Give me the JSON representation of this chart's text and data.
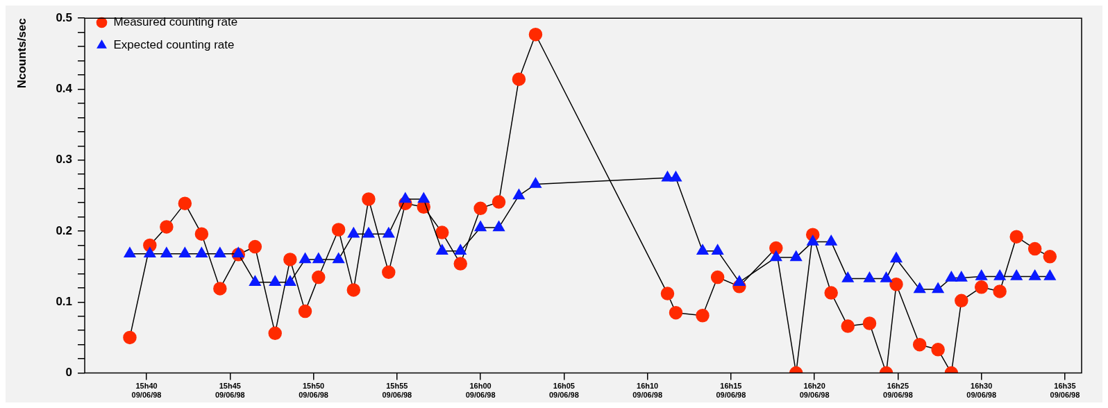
{
  "chart_data": {
    "type": "line",
    "ylabel": "Ncounts/sec",
    "legend": "top left",
    "grid": false,
    "line_style": "solid",
    "x": [
      "1998-06-09T15:39:00",
      "1998-06-09T15:40:12",
      "1998-06-09T15:41:12",
      "1998-06-09T15:42:18",
      "1998-06-09T15:43:18",
      "1998-06-09T15:44:24",
      "1998-06-09T15:45:30",
      "1998-06-09T15:46:30",
      "1998-06-09T15:47:42",
      "1998-06-09T15:48:36",
      "1998-06-09T15:49:30",
      "1998-06-09T15:50:18",
      "1998-06-09T15:51:30",
      "1998-06-09T15:52:24",
      "1998-06-09T15:53:18",
      "1998-06-09T15:54:30",
      "1998-06-09T15:55:30",
      "1998-06-09T15:56:36",
      "1998-06-09T15:57:42",
      "1998-06-09T15:58:48",
      "1998-06-09T16:00:00",
      "1998-06-09T16:01:06",
      "1998-06-09T16:02:18",
      "1998-06-09T16:03:18",
      "1998-06-09T16:11:12",
      "1998-06-09T16:11:42",
      "1998-06-09T16:13:18",
      "1998-06-09T16:14:12",
      "1998-06-09T16:15:30",
      "1998-06-09T16:17:42",
      "1998-06-09T16:18:54",
      "1998-06-09T16:19:54",
      "1998-06-09T16:21:00",
      "1998-06-09T16:22:00",
      "1998-06-09T16:23:18",
      "1998-06-09T16:24:18",
      "1998-06-09T16:24:54",
      "1998-06-09T16:26:18",
      "1998-06-09T16:27:24",
      "1998-06-09T16:28:12",
      "1998-06-09T16:28:48",
      "1998-06-09T16:30:00",
      "1998-06-09T16:31:06",
      "1998-06-09T16:32:06",
      "1998-06-09T16:33:12",
      "1998-06-09T16:34:06"
    ],
    "series": [
      {
        "name": "Measured counting rate",
        "color": "#ff2a00",
        "marker": "circle",
        "values": [
          0.05,
          0.18,
          0.206,
          0.239,
          0.196,
          0.119,
          0.167,
          0.178,
          0.056,
          0.16,
          0.087,
          0.135,
          0.202,
          0.117,
          0.245,
          0.142,
          0.239,
          0.234,
          0.198,
          0.154,
          0.232,
          0.241,
          0.414,
          0.477,
          0.112,
          0.085,
          0.081,
          0.135,
          0.122,
          0.176,
          0.0,
          0.195,
          0.113,
          0.066,
          0.07,
          0.0,
          0.125,
          0.04,
          0.033,
          0.0,
          0.102,
          0.121,
          0.115,
          0.192,
          0.175,
          0.164
        ]
      },
      {
        "name": "Expected counting rate",
        "color": "#0a1aff",
        "marker": "triangle",
        "values": [
          0.168,
          0.168,
          0.168,
          0.168,
          0.168,
          0.168,
          0.168,
          0.128,
          0.128,
          0.128,
          0.16,
          0.16,
          0.16,
          0.196,
          0.196,
          0.196,
          0.245,
          0.245,
          0.172,
          0.172,
          0.205,
          0.205,
          0.25,
          0.266,
          0.275,
          0.275,
          0.172,
          0.172,
          0.128,
          0.163,
          0.163,
          0.185,
          0.185,
          0.133,
          0.133,
          0.133,
          0.161,
          0.118,
          0.118,
          0.134,
          0.134,
          0.136,
          0.136,
          0.136,
          0.136,
          0.136
        ]
      }
    ],
    "xlim": [
      "1998-06-09T15:36:18",
      "1998-06-09T16:36:00"
    ],
    "xticks": [
      {
        "value": "1998-06-09T15:40",
        "label": "15h40\n09/06/98"
      },
      {
        "value": "1998-06-09T15:45",
        "label": "15h45\n09/06/98"
      },
      {
        "value": "1998-06-09T15:50",
        "label": "15h50\n09/06/98"
      },
      {
        "value": "1998-06-09T15:55",
        "label": "15h55\n09/06/98"
      },
      {
        "value": "1998-06-09T16:00",
        "label": "16h00\n09/06/98"
      },
      {
        "value": "1998-06-09T16:05",
        "label": "16h05\n09/06/98"
      },
      {
        "value": "1998-06-09T16:10",
        "label": "16h10\n09/06/98"
      },
      {
        "value": "1998-06-09T16:15",
        "label": "16h15\n09/06/98"
      },
      {
        "value": "1998-06-09T16:20",
        "label": "16h20\n09/06/98"
      },
      {
        "value": "1998-06-09T16:25",
        "label": "16h25\n09/06/98"
      },
      {
        "value": "1998-06-09T16:30",
        "label": "16h30\n09/06/98"
      },
      {
        "value": "1998-06-09T16:35",
        "label": "16h35\n09/06/98"
      }
    ],
    "ylim": [
      0,
      0.5
    ],
    "yticks": [
      0,
      {
        "value": 0.02,
        "label": null
      },
      {
        "value": 0.04,
        "label": null
      },
      {
        "value": 0.06,
        "label": null
      },
      {
        "value": 0.08,
        "label": null
      },
      0.1,
      {
        "value": 0.12,
        "label": null
      },
      {
        "value": 0.14,
        "label": null
      },
      {
        "value": 0.16,
        "label": null
      },
      {
        "value": 0.18,
        "label": null
      },
      0.2,
      {
        "value": 0.22,
        "label": null
      },
      {
        "value": 0.24,
        "label": null
      },
      {
        "value": 0.26,
        "label": null
      },
      {
        "value": 0.28,
        "label": null
      },
      0.3,
      {
        "value": 0.32,
        "label": null
      },
      {
        "value": 0.34,
        "label": null
      },
      {
        "value": 0.36,
        "label": null
      },
      {
        "value": 0.38,
        "label": null
      },
      0.4,
      {
        "value": 0.42,
        "label": null
      },
      {
        "value": 0.44,
        "label": null
      },
      {
        "value": 0.46,
        "label": null
      },
      {
        "value": 0.48,
        "label": null
      },
      0.5
    ]
  }
}
